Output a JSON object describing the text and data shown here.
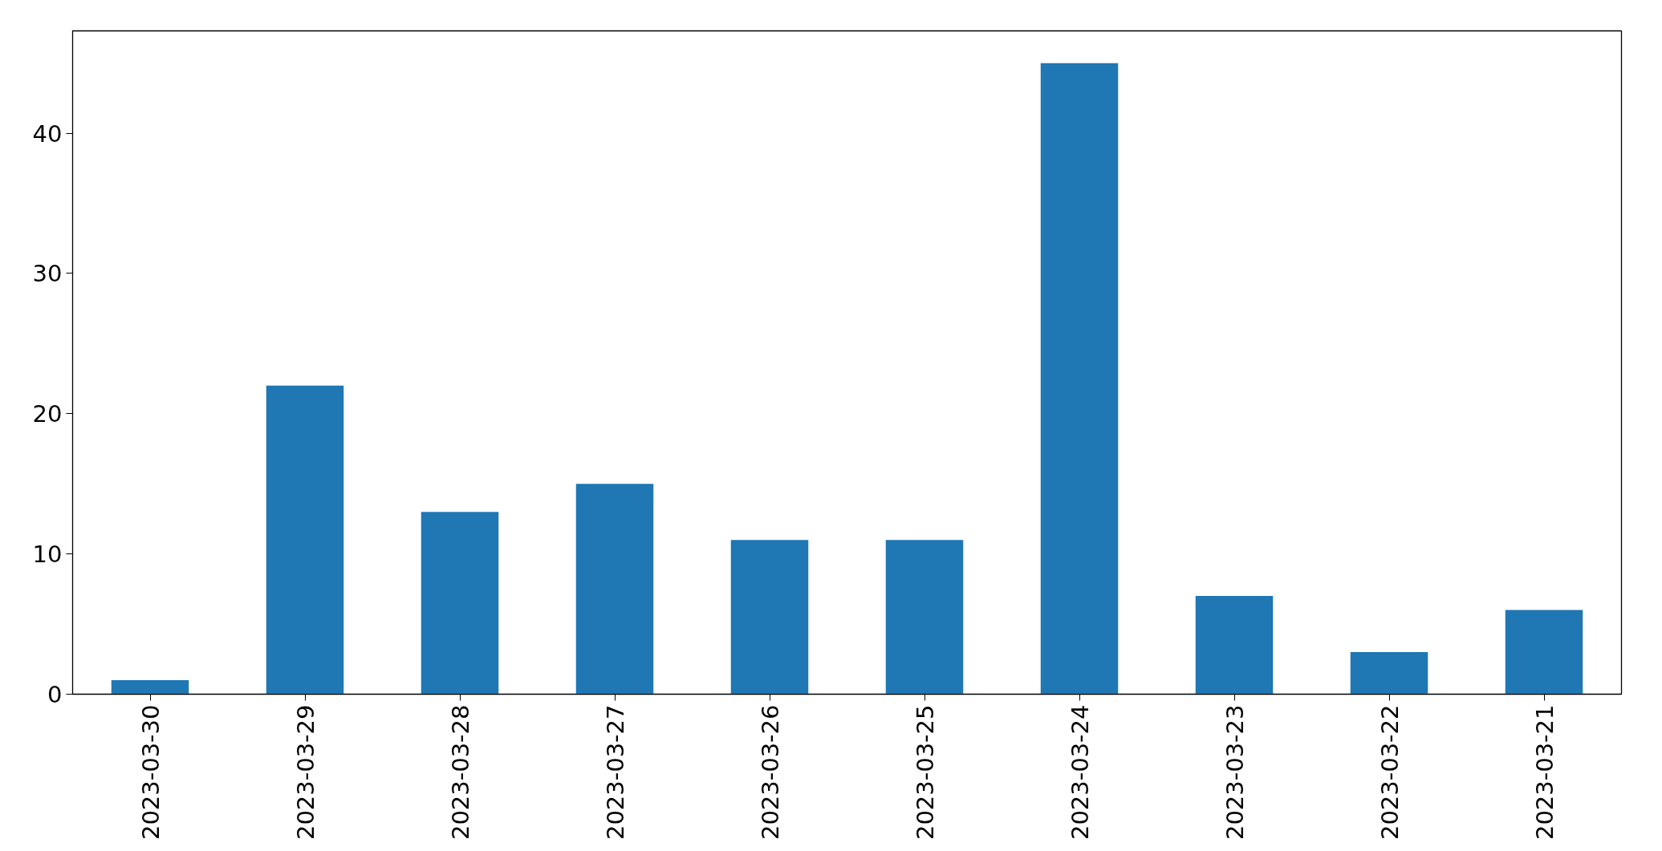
{
  "chart_data": {
    "type": "bar",
    "categories": [
      "2023-03-30",
      "2023-03-29",
      "2023-03-28",
      "2023-03-27",
      "2023-03-26",
      "2023-03-25",
      "2023-03-24",
      "2023-03-23",
      "2023-03-22",
      "2023-03-21"
    ],
    "values": [
      1,
      22,
      13,
      15,
      11,
      11,
      45,
      7,
      3,
      6
    ],
    "color": "#1f77b4",
    "ylim": [
      0,
      47.3
    ],
    "yticks": [
      0,
      10,
      20,
      30,
      40
    ],
    "grid": false
  }
}
